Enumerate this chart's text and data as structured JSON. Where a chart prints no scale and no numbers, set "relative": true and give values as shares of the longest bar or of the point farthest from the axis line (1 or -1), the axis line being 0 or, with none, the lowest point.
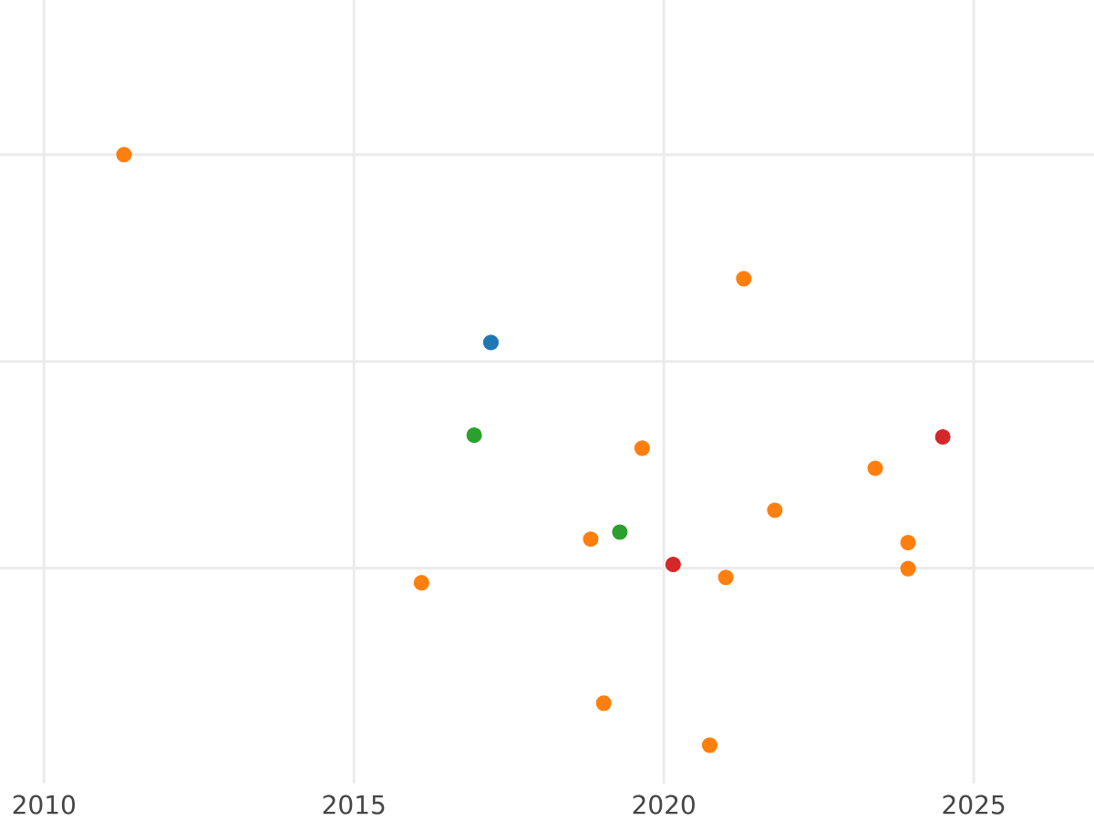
{
  "chart_data": {
    "type": "scatter",
    "relative": true,
    "grid": true,
    "marker": "circle",
    "tick_labels": "x",
    "xlim": [
      2009.29,
      2026.94
    ],
    "xticks": [
      2010,
      2015,
      2020,
      2025
    ],
    "series": [
      {
        "color": "#ff7f0e",
        "x": [
          2011.29,
          2021.29,
          2019.65,
          2023.41,
          2021.79,
          2018.82,
          2023.94,
          2023.94,
          2021.0,
          2016.09,
          2019.03,
          2020.74
        ],
        "values": [
          1,
          0.79,
          0.503,
          0.469,
          0.398,
          0.349,
          0.343,
          0.299,
          0.284,
          0.275,
          0.071,
          0
        ]
      },
      {
        "color": "#1f77b4",
        "x": [
          2017.21
        ],
        "values": [
          0.682
        ]
      },
      {
        "color": "#2ca02c",
        "x": [
          2016.94,
          2019.29
        ],
        "values": [
          0.525,
          0.361
        ]
      },
      {
        "color": "#d62728",
        "x": [
          2024.5,
          2020.15
        ],
        "values": [
          0.522,
          0.306
        ]
      }
    ]
  }
}
